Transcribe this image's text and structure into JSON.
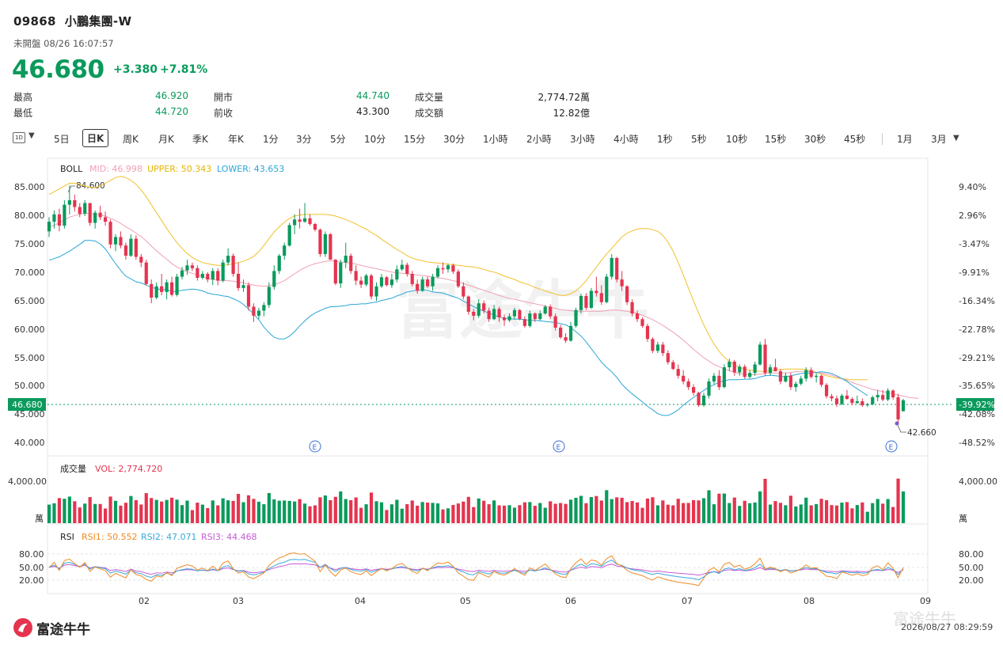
{
  "header": {
    "code": "09868",
    "name": "小鵬集團-W",
    "status": "未開盤 08/26 16:07:57",
    "price": "46.680",
    "change": "+3.380",
    "change_pct": "+7.81%",
    "colors": {
      "up": "#0a9a5c",
      "down": "#e5344f"
    }
  },
  "stats": [
    {
      "label": "最高",
      "value": "46.920"
    },
    {
      "label": "最低",
      "value": "44.720"
    },
    {
      "label": "開市",
      "value": "44.740"
    },
    {
      "label": "前收",
      "value": "43.300"
    },
    {
      "label": "成交量",
      "value": "2,774.72萬"
    },
    {
      "label": "成交額",
      "value": "12.82億"
    }
  ],
  "toolbar": {
    "period_icon": "1D",
    "items": [
      "5日",
      "日K",
      "周K",
      "月K",
      "季K",
      "年K",
      "1分",
      "3分",
      "5分",
      "10分",
      "15分",
      "30分",
      "1小時",
      "2小時",
      "3小時",
      "4小時",
      "1秒",
      "5秒",
      "10秒",
      "15秒",
      "30秒",
      "45秒",
      "1月",
      "3月"
    ],
    "selected": "日K"
  },
  "footer": {
    "logo": "富途牛牛",
    "watermark": "富途牛牛",
    "timestamp": "2026/08/27 08:29:59"
  },
  "chart_data": {
    "type": "candlestick",
    "legend": {
      "boll_title": "BOLL",
      "mid": "MID: 46.998",
      "upper": "UPPER: 50.343",
      "lower": "LOWER: 43.653",
      "vol_title": "成交量",
      "vol": "VOL: 2,774.720",
      "rsi_title": "RSI",
      "rsi1": "RSI1: 50.552",
      "rsi2": "RSI2: 47.071",
      "rsi3": "RSI3: 44.468"
    },
    "y_ticks": [
      "85.000",
      "80.000",
      "75.000",
      "70.000",
      "65.000",
      "60.000",
      "55.000",
      "50.000",
      "45.000",
      "40.000"
    ],
    "pct_ticks": [
      "9.40%",
      "2.96%",
      "-3.47%",
      "-9.91%",
      "-16.34%",
      "-22.78%",
      "-29.21%",
      "-35.65%",
      "-42.08%",
      "-48.52%"
    ],
    "ylim": [
      38,
      87.5
    ],
    "current_price": "46.680",
    "current_pct": "-39.92%",
    "high_mark": "84.600",
    "low_mark": "42.660",
    "vol_tick": "4,000.00",
    "vol_unit": "萬",
    "vol_max": 6500,
    "rsi_ticks": [
      "80.00",
      "50.00",
      "20.00"
    ],
    "x_month_labels": [
      "02",
      "03",
      "04",
      "05",
      "06",
      "07",
      "08",
      "09"
    ],
    "event_marker": "E",
    "colors": {
      "up": "#0a9a5c",
      "down": "#e5344f",
      "mid": "#f0a0b4",
      "upper": "#f2c02a",
      "lower": "#2aa6d6",
      "rsi1": "#f08a24",
      "rsi2": "#3aa8d8",
      "rsi3": "#c85ad6"
    },
    "candles": [
      [
        76.5,
        79.0,
        75.5,
        78.2
      ],
      [
        78.2,
        80.2,
        77.0,
        79.5
      ],
      [
        79.5,
        80.5,
        76.5,
        77.5
      ],
      [
        77.5,
        82.0,
        77.0,
        81.2
      ],
      [
        81.2,
        84.6,
        79.5,
        82.0
      ],
      [
        82.0,
        83.0,
        80.0,
        80.8
      ],
      [
        80.8,
        81.5,
        79.0,
        79.6
      ],
      [
        79.6,
        82.0,
        79.2,
        81.5
      ],
      [
        81.5,
        81.5,
        77.5,
        78.0
      ],
      [
        78.0,
        80.2,
        77.0,
        79.8
      ],
      [
        79.8,
        81.0,
        78.5,
        79.0
      ],
      [
        79.0,
        80.0,
        77.5,
        78.2
      ],
      [
        78.2,
        78.6,
        73.5,
        74.2
      ],
      [
        74.2,
        76.0,
        73.0,
        75.5
      ],
      [
        75.5,
        76.5,
        73.5,
        74.0
      ],
      [
        74.0,
        74.5,
        71.5,
        72.2
      ],
      [
        72.2,
        76.0,
        72.0,
        75.2
      ],
      [
        75.2,
        75.8,
        71.5,
        72.0
      ],
      [
        72.0,
        72.5,
        70.2,
        71.0
      ],
      [
        71.0,
        71.5,
        67.0,
        67.2
      ],
      [
        67.2,
        68.0,
        63.8,
        64.8
      ],
      [
        64.8,
        67.5,
        64.5,
        66.8
      ],
      [
        66.8,
        69.0,
        65.2,
        65.8
      ],
      [
        65.8,
        68.0,
        64.5,
        67.5
      ],
      [
        67.5,
        68.5,
        65.0,
        65.3
      ],
      [
        65.3,
        69.0,
        65.0,
        68.5
      ],
      [
        68.5,
        70.2,
        68.0,
        69.6
      ],
      [
        69.6,
        71.5,
        68.8,
        70.5
      ],
      [
        70.5,
        71.0,
        69.5,
        70.0
      ],
      [
        70.0,
        70.5,
        67.8,
        68.3
      ],
      [
        68.3,
        69.5,
        68.0,
        69.0
      ],
      [
        69.0,
        69.3,
        67.5,
        68.0
      ],
      [
        68.0,
        70.0,
        67.0,
        69.5
      ],
      [
        69.5,
        70.0,
        67.0,
        67.8
      ],
      [
        67.8,
        71.5,
        67.5,
        71.0
      ],
      [
        71.0,
        73.5,
        70.5,
        72.2
      ],
      [
        72.2,
        72.6,
        68.5,
        69.0
      ],
      [
        69.0,
        71.0,
        66.0,
        66.5
      ],
      [
        66.5,
        68.0,
        65.8,
        67.0
      ],
      [
        67.0,
        67.5,
        62.5,
        63.2
      ],
      [
        63.2,
        63.8,
        60.5,
        61.6
      ],
      [
        61.6,
        63.0,
        61.0,
        62.5
      ],
      [
        62.5,
        64.0,
        61.5,
        63.5
      ],
      [
        63.5,
        67.5,
        63.0,
        66.7
      ],
      [
        66.7,
        70.5,
        66.2,
        69.5
      ],
      [
        69.5,
        72.5,
        69.0,
        72.2
      ],
      [
        72.2,
        74.5,
        71.5,
        74.0
      ],
      [
        74.0,
        78.0,
        73.8,
        77.6
      ],
      [
        77.6,
        79.5,
        76.0,
        78.6
      ],
      [
        78.6,
        80.5,
        77.0,
        78.2
      ],
      [
        78.2,
        81.5,
        78.0,
        78.8
      ],
      [
        78.8,
        79.5,
        77.5,
        77.8
      ],
      [
        77.8,
        78.0,
        76.5,
        76.8
      ],
      [
        76.8,
        77.0,
        72.0,
        72.5
      ],
      [
        72.5,
        76.5,
        72.0,
        76.0
      ],
      [
        76.0,
        76.2,
        71.5,
        71.5
      ],
      [
        71.5,
        71.6,
        67.0,
        67.3
      ],
      [
        67.3,
        71.5,
        66.5,
        71.0
      ],
      [
        71.0,
        74.5,
        70.0,
        72.2
      ],
      [
        72.2,
        72.6,
        69.0,
        69.5
      ],
      [
        69.5,
        70.5,
        67.0,
        67.8
      ],
      [
        67.8,
        68.5,
        66.5,
        67.1
      ],
      [
        67.1,
        69.0,
        66.8,
        68.7
      ],
      [
        68.7,
        69.0,
        64.5,
        65.0
      ],
      [
        65.0,
        67.5,
        64.2,
        66.8
      ],
      [
        66.8,
        69.0,
        66.5,
        68.4
      ],
      [
        68.4,
        68.6,
        66.8,
        67.0
      ],
      [
        67.0,
        69.0,
        66.5,
        68.0
      ],
      [
        68.0,
        70.5,
        67.5,
        69.8
      ],
      [
        69.8,
        71.5,
        69.5,
        70.6
      ],
      [
        70.6,
        71.0,
        68.5,
        69.0
      ],
      [
        69.0,
        69.5,
        66.8,
        67.2
      ],
      [
        67.2,
        68.0,
        65.5,
        66.0
      ],
      [
        66.0,
        68.5,
        65.8,
        68.0
      ],
      [
        68.0,
        68.5,
        66.5,
        66.8
      ],
      [
        66.8,
        69.0,
        66.0,
        68.5
      ],
      [
        68.5,
        70.5,
        68.2,
        70.0
      ],
      [
        70.0,
        71.0,
        69.0,
        69.8
      ],
      [
        69.8,
        70.8,
        69.2,
        70.5
      ],
      [
        70.5,
        70.8,
        69.0,
        69.4
      ],
      [
        69.4,
        69.8,
        66.5,
        66.8
      ],
      [
        66.8,
        67.5,
        64.5,
        65.0
      ],
      [
        65.0,
        65.2,
        61.8,
        62.3
      ],
      [
        62.3,
        62.8,
        60.8,
        61.6
      ],
      [
        61.6,
        64.5,
        61.2,
        63.8
      ],
      [
        63.8,
        64.3,
        62.0,
        62.5
      ],
      [
        62.5,
        63.0,
        60.5,
        61.0
      ],
      [
        61.0,
        63.5,
        60.8,
        62.8
      ],
      [
        62.8,
        63.2,
        60.5,
        61.3
      ],
      [
        61.3,
        61.8,
        59.8,
        60.8
      ],
      [
        60.8,
        62.0,
        60.5,
        61.5
      ],
      [
        61.5,
        63.0,
        61.0,
        62.6
      ],
      [
        62.6,
        62.8,
        60.8,
        61.0
      ],
      [
        61.0,
        61.5,
        59.5,
        59.8
      ],
      [
        59.8,
        62.5,
        59.5,
        62.0
      ],
      [
        62.0,
        62.2,
        60.5,
        61.0
      ],
      [
        61.0,
        62.5,
        60.8,
        62.0
      ],
      [
        62.0,
        63.5,
        61.8,
        63.2
      ],
      [
        63.2,
        63.6,
        61.0,
        61.5
      ],
      [
        61.5,
        62.0,
        59.0,
        59.5
      ],
      [
        59.5,
        60.0,
        57.5,
        57.8
      ],
      [
        57.8,
        58.5,
        56.8,
        57.2
      ],
      [
        57.2,
        60.5,
        57.0,
        59.8
      ],
      [
        59.8,
        63.0,
        59.5,
        62.6
      ],
      [
        62.6,
        65.5,
        62.0,
        65.1
      ],
      [
        65.1,
        65.6,
        62.6,
        63.0
      ],
      [
        63.0,
        66.5,
        62.8,
        66.0
      ],
      [
        66.0,
        68.5,
        65.0,
        65.6
      ],
      [
        65.6,
        67.0,
        63.5,
        64.0
      ],
      [
        64.0,
        69.0,
        63.8,
        68.5
      ],
      [
        68.5,
        72.5,
        68.0,
        71.8
      ],
      [
        71.8,
        72.0,
        67.5,
        68.0
      ],
      [
        68.0,
        69.5,
        66.0,
        66.8
      ],
      [
        66.8,
        67.0,
        63.5,
        64.0
      ],
      [
        64.0,
        64.5,
        61.5,
        62.0
      ],
      [
        62.0,
        62.5,
        60.5,
        61.0
      ],
      [
        61.0,
        61.3,
        59.5,
        59.8
      ],
      [
        59.8,
        60.2,
        57.0,
        57.5
      ],
      [
        57.5,
        57.8,
        55.0,
        55.4
      ],
      [
        55.4,
        57.0,
        55.0,
        56.5
      ],
      [
        56.5,
        57.0,
        54.5,
        55.0
      ],
      [
        55.0,
        55.5,
        53.0,
        53.4
      ],
      [
        53.4,
        53.8,
        52.0,
        52.2
      ],
      [
        52.2,
        53.0,
        50.5,
        51.0
      ],
      [
        51.0,
        52.0,
        49.5,
        50.0
      ],
      [
        50.0,
        50.5,
        48.5,
        49.0
      ],
      [
        49.0,
        49.5,
        47.5,
        48.0
      ],
      [
        48.0,
        48.2,
        45.5,
        45.8
      ],
      [
        45.8,
        48.0,
        45.5,
        47.5
      ],
      [
        47.5,
        50.5,
        47.0,
        50.0
      ],
      [
        50.0,
        51.5,
        49.5,
        51.0
      ],
      [
        51.0,
        52.0,
        48.5,
        49.0
      ],
      [
        49.0,
        53.0,
        48.8,
        52.5
      ],
      [
        52.5,
        54.0,
        51.8,
        53.5
      ],
      [
        53.5,
        53.8,
        51.0,
        51.6
      ],
      [
        51.6,
        53.0,
        51.0,
        52.6
      ],
      [
        52.6,
        53.0,
        50.5,
        50.8
      ],
      [
        50.8,
        52.0,
        50.5,
        51.5
      ],
      [
        51.5,
        53.5,
        51.0,
        53.0
      ],
      [
        53.0,
        57.0,
        52.8,
        56.5
      ],
      [
        56.5,
        57.5,
        51.0,
        51.5
      ],
      [
        51.5,
        53.0,
        51.0,
        52.5
      ],
      [
        52.5,
        54.0,
        51.8,
        51.8
      ],
      [
        51.8,
        52.2,
        49.5,
        50.0
      ],
      [
        50.0,
        51.5,
        49.8,
        51.0
      ],
      [
        51.0,
        51.5,
        48.5,
        49.0
      ],
      [
        49.0,
        50.0,
        48.2,
        49.6
      ],
      [
        49.6,
        51.0,
        49.3,
        50.5
      ],
      [
        50.5,
        52.5,
        50.0,
        52.0
      ],
      [
        52.0,
        52.5,
        50.5,
        50.8
      ],
      [
        50.8,
        51.5,
        49.8,
        51.0
      ],
      [
        51.0,
        51.2,
        49.0,
        49.4
      ],
      [
        49.4,
        49.7,
        47.0,
        47.4
      ],
      [
        47.4,
        47.8,
        46.5,
        47.0
      ],
      [
        47.0,
        47.5,
        45.5,
        46.0
      ],
      [
        46.0,
        47.8,
        45.8,
        47.5
      ],
      [
        47.5,
        48.5,
        46.8,
        46.9
      ],
      [
        46.9,
        47.2,
        45.8,
        46.2
      ],
      [
        46.2,
        47.5,
        46.0,
        46.5
      ],
      [
        46.5,
        47.0,
        45.5,
        45.8
      ],
      [
        45.8,
        46.2,
        45.5,
        46.0
      ],
      [
        46.0,
        47.5,
        45.8,
        47.2
      ],
      [
        47.2,
        48.5,
        46.5,
        47.6
      ],
      [
        47.6,
        48.5,
        46.5,
        46.8
      ],
      [
        46.8,
        48.8,
        46.5,
        48.4
      ],
      [
        48.4,
        48.6,
        46.8,
        47.2
      ],
      [
        47.2,
        47.8,
        42.66,
        43.3
      ],
      [
        44.74,
        46.92,
        44.72,
        46.68
      ]
    ],
    "mid": [
      77.2,
      77.6,
      78.0,
      78.5,
      79.0,
      79.3,
      79.5,
      79.7,
      79.6,
      79.5,
      79.4,
      79.2,
      78.8,
      78.4,
      77.9,
      77.3,
      76.8,
      76.2,
      75.6,
      74.8,
      73.9,
      73.1,
      72.3,
      71.6,
      70.8,
      70.2,
      69.8,
      69.4,
      69.1,
      68.8,
      68.5,
      68.2,
      68.0,
      67.9,
      67.8,
      67.8,
      67.7,
      67.6,
      67.4,
      67.2,
      67.0,
      66.9,
      66.8,
      66.9,
      67.1,
      67.4,
      67.8,
      68.4,
      69.0,
      69.6,
      70.1,
      70.5,
      70.8,
      71.0,
      71.2,
      71.3,
      71.2,
      71.1,
      71.0,
      70.9,
      70.7,
      70.5,
      70.3,
      70.1,
      69.9,
      69.7,
      69.5,
      69.3,
      69.2,
      69.1,
      69.0,
      68.9,
      68.8,
      68.7,
      68.6,
      68.4,
      68.3,
      68.2,
      68.0,
      67.8,
      67.6,
      67.3,
      67.0,
      66.7,
      66.4,
      66.1,
      65.8,
      65.5,
      65.2,
      64.9,
      64.7,
      64.5,
      64.3,
      64.1,
      63.9,
      63.7,
      63.5,
      63.3,
      63.1,
      62.9,
      62.7,
      62.6,
      62.5,
      62.4,
      62.4,
      62.4,
      62.4,
      62.4,
      62.4,
      62.5,
      62.6,
      62.6,
      62.5,
      62.4,
      62.2,
      62.0,
      61.7,
      61.3,
      60.9,
      60.4,
      59.9,
      59.3,
      58.7,
      58.0,
      57.3,
      56.5,
      55.7,
      54.9,
      54.2,
      53.6,
      53.0,
      52.6,
      52.2,
      51.9,
      51.6,
      51.4,
      51.3,
      51.2,
      51.2,
      51.3,
      51.4,
      51.5,
      51.5,
      51.5,
      51.5,
      51.6,
      51.7,
      51.8,
      51.8,
      51.7,
      51.6,
      51.5,
      51.3,
      51.1,
      50.8,
      50.5,
      50.2,
      49.8,
      49.5,
      49.2,
      48.9,
      48.6,
      48.4,
      48.2,
      48.0,
      47.8,
      47.6,
      47.4,
      47.2,
      47.1,
      47.0
    ],
    "upper": [
      83.0,
      83.5,
      84.0,
      84.5,
      85.0,
      85.0,
      84.8,
      84.5,
      84.3,
      84.2,
      84.5,
      85.0,
      85.5,
      86.0,
      86.2,
      86.0,
      85.5,
      84.8,
      83.8,
      82.6,
      81.2,
      79.8,
      78.4,
      77.0,
      75.7,
      74.5,
      73.5,
      72.6,
      71.9,
      71.4,
      71.0,
      70.8,
      70.6,
      70.5,
      70.5,
      70.6,
      70.8,
      71.0,
      71.2,
      71.6,
      72.1,
      72.9,
      74.0,
      75.2,
      76.4,
      77.3,
      78.1,
      78.8,
      79.2,
      79.4,
      79.5,
      79.5,
      79.5,
      79.5,
      79.5,
      79.4,
      79.2,
      78.9,
      78.6,
      78.2,
      77.8,
      77.3,
      76.9,
      76.3,
      75.8,
      75.1,
      74.5,
      73.9,
      73.3,
      72.8,
      72.2,
      71.8,
      71.5,
      71.3,
      71.1,
      71.0,
      70.9,
      70.8,
      70.7,
      70.6,
      70.5,
      70.4,
      70.3,
      70.2,
      70.0,
      69.8,
      69.5,
      69.3,
      69.0,
      68.6,
      68.3,
      68.0,
      67.6,
      67.3,
      67.0,
      66.6,
      66.3,
      66.0,
      65.7,
      65.4,
      65.2,
      65.2,
      65.5,
      66.0,
      66.8,
      67.8,
      69.0,
      70.2,
      71.4,
      72.5,
      73.5,
      74.5,
      75.5,
      76.2,
      76.6,
      76.9,
      77.0,
      77.0,
      76.8,
      76.5,
      75.8,
      74.6,
      73.0,
      71.0,
      68.8,
      66.5,
      64.2,
      62.0,
      60.0,
      58.2,
      56.6,
      55.3,
      54.3,
      53.5,
      52.9,
      52.5,
      52.2,
      52.0,
      51.9,
      51.8,
      51.8,
      51.9,
      52.0,
      52.1,
      52.2,
      52.2,
      52.2,
      52.2,
      52.1,
      51.9,
      51.6,
      51.3,
      51.0,
      50.8,
      50.6,
      50.5,
      50.4,
      50.3,
      50.3,
      50.3,
      50.3
    ]
  }
}
